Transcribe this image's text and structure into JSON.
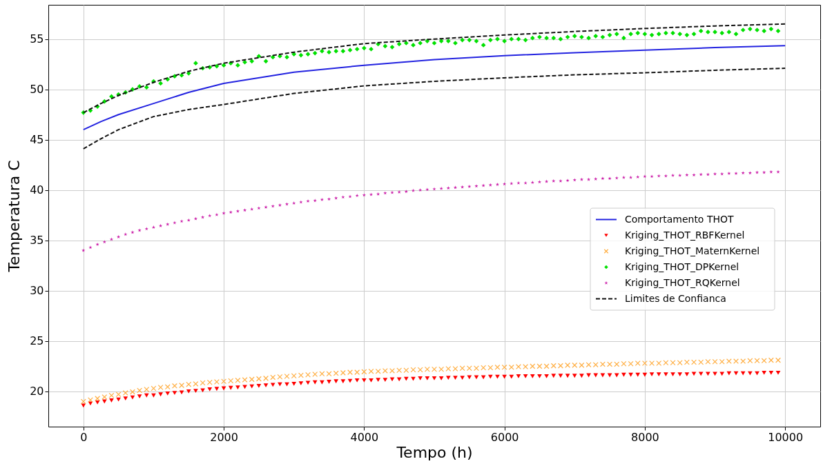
{
  "chart_data": {
    "type": "scatter",
    "xlabel": "Tempo (h)",
    "ylabel": "Temperatura C",
    "xlim": [
      -500,
      10500
    ],
    "ylim": [
      16.5,
      58.4
    ],
    "xticks": [
      0,
      2000,
      4000,
      6000,
      8000,
      10000
    ],
    "yticks": [
      20,
      25,
      30,
      35,
      40,
      45,
      50,
      55
    ],
    "grid": true,
    "legend": "right",
    "x": [
      0,
      100,
      200,
      300,
      400,
      500,
      600,
      700,
      800,
      900,
      1000,
      1100,
      1200,
      1300,
      1400,
      1500,
      1600,
      1700,
      1800,
      1900,
      2000,
      2100,
      2200,
      2300,
      2400,
      2500,
      2600,
      2700,
      2800,
      2900,
      3000,
      3100,
      3200,
      3300,
      3400,
      3500,
      3600,
      3700,
      3800,
      3900,
      4000,
      4100,
      4200,
      4300,
      4400,
      4500,
      4600,
      4700,
      4800,
      4900,
      5000,
      5100,
      5200,
      5300,
      5400,
      5500,
      5600,
      5700,
      5800,
      5900,
      6000,
      6100,
      6200,
      6300,
      6400,
      6500,
      6600,
      6700,
      6800,
      6900,
      7000,
      7100,
      7200,
      7300,
      7400,
      7500,
      7600,
      7700,
      7800,
      7900,
      8000,
      8100,
      8200,
      8300,
      8400,
      8500,
      8600,
      8700,
      8800,
      8900,
      9000,
      9100,
      9200,
      9300,
      9400,
      9500,
      9600,
      9700,
      9800,
      9900
    ],
    "series": [
      {
        "name": "Comportamento THOT",
        "type": "line",
        "color": "#2222e0",
        "line_style": "solid",
        "x": [
          0,
          250,
          500,
          1000,
          1500,
          2000,
          3000,
          4000,
          5000,
          6000,
          7000,
          8000,
          9000,
          10000
        ],
        "values": [
          46.0,
          46.8,
          47.5,
          48.6,
          49.7,
          50.6,
          51.7,
          52.4,
          52.95,
          53.35,
          53.65,
          53.9,
          54.15,
          54.35
        ]
      },
      {
        "name": "Kriging_THOT_RBFKernel",
        "marker": "triangle",
        "color": "#ff0000",
        "values": [
          18.6,
          18.8,
          18.9,
          19.0,
          19.1,
          19.2,
          19.3,
          19.4,
          19.5,
          19.6,
          19.6,
          19.7,
          19.8,
          19.85,
          19.9,
          20.0,
          20.05,
          20.1,
          20.2,
          20.25,
          20.3,
          20.35,
          20.4,
          20.45,
          20.5,
          20.55,
          20.6,
          20.65,
          20.7,
          20.7,
          20.75,
          20.8,
          20.85,
          20.9,
          20.9,
          20.95,
          21.0,
          21.0,
          21.05,
          21.1,
          21.1,
          21.1,
          21.15,
          21.15,
          21.2,
          21.2,
          21.25,
          21.25,
          21.3,
          21.3,
          21.3,
          21.3,
          21.35,
          21.35,
          21.35,
          21.4,
          21.4,
          21.4,
          21.45,
          21.45,
          21.45,
          21.45,
          21.5,
          21.5,
          21.5,
          21.5,
          21.5,
          21.55,
          21.55,
          21.55,
          21.55,
          21.55,
          21.6,
          21.6,
          21.6,
          21.6,
          21.6,
          21.65,
          21.65,
          21.65,
          21.65,
          21.7,
          21.7,
          21.7,
          21.7,
          21.7,
          21.7,
          21.75,
          21.75,
          21.75,
          21.75,
          21.75,
          21.8,
          21.8,
          21.8,
          21.8,
          21.8,
          21.85,
          21.85,
          21.85
        ]
      },
      {
        "name": "Kriging_THOT_MaternKernel",
        "marker": "cross",
        "color": "#ffae42",
        "values": [
          19.0,
          19.15,
          19.3,
          19.45,
          19.6,
          19.7,
          19.85,
          19.95,
          20.1,
          20.2,
          20.3,
          20.4,
          20.45,
          20.55,
          20.6,
          20.7,
          20.75,
          20.85,
          20.9,
          20.95,
          21.0,
          21.05,
          21.1,
          21.15,
          21.2,
          21.25,
          21.3,
          21.4,
          21.45,
          21.5,
          21.55,
          21.6,
          21.65,
          21.7,
          21.75,
          21.75,
          21.8,
          21.85,
          21.9,
          21.9,
          21.95,
          22.0,
          22.0,
          22.05,
          22.05,
          22.1,
          22.1,
          22.15,
          22.15,
          22.2,
          22.2,
          22.2,
          22.25,
          22.25,
          22.3,
          22.3,
          22.3,
          22.35,
          22.35,
          22.4,
          22.4,
          22.4,
          22.45,
          22.45,
          22.5,
          22.5,
          22.5,
          22.55,
          22.55,
          22.6,
          22.6,
          22.6,
          22.65,
          22.65,
          22.7,
          22.7,
          22.7,
          22.75,
          22.75,
          22.8,
          22.8,
          22.8,
          22.8,
          22.85,
          22.85,
          22.85,
          22.9,
          22.9,
          22.9,
          22.95,
          22.95,
          22.95,
          23.0,
          23.0,
          23.0,
          23.05,
          23.05,
          23.05,
          23.1,
          23.1
        ]
      },
      {
        "name": "Kriging_THOT_DPKernel",
        "marker": "diamond",
        "color": "#00e000",
        "values": [
          47.7,
          47.9,
          48.3,
          48.8,
          49.3,
          49.5,
          49.7,
          50.0,
          50.3,
          50.2,
          50.8,
          50.6,
          51.0,
          51.3,
          51.4,
          51.6,
          52.6,
          52.1,
          52.2,
          52.3,
          52.4,
          52.6,
          52.4,
          52.7,
          52.8,
          53.3,
          52.8,
          53.2,
          53.3,
          53.2,
          53.5,
          53.4,
          53.5,
          53.6,
          53.8,
          53.7,
          53.8,
          53.8,
          53.9,
          54.0,
          54.1,
          54.0,
          54.5,
          54.3,
          54.2,
          54.5,
          54.6,
          54.4,
          54.6,
          54.8,
          54.6,
          54.8,
          54.8,
          54.6,
          54.9,
          54.9,
          54.8,
          54.4,
          54.9,
          55.0,
          54.8,
          55.0,
          55.0,
          54.9,
          55.1,
          55.2,
          55.1,
          55.1,
          55.0,
          55.2,
          55.3,
          55.2,
          55.1,
          55.3,
          55.2,
          55.4,
          55.5,
          55.1,
          55.5,
          55.6,
          55.5,
          55.4,
          55.5,
          55.6,
          55.6,
          55.5,
          55.4,
          55.5,
          55.8,
          55.7,
          55.7,
          55.6,
          55.7,
          55.5,
          55.9,
          56.0,
          55.9,
          55.8,
          56.0,
          55.8
        ]
      },
      {
        "name": "Kriging_THOT_RQKernel",
        "marker": "star",
        "color": "#cc22aa",
        "values": [
          34.0,
          34.3,
          34.6,
          34.85,
          35.1,
          35.35,
          35.6,
          35.8,
          36.0,
          36.15,
          36.3,
          36.45,
          36.6,
          36.75,
          36.9,
          37.0,
          37.15,
          37.3,
          37.45,
          37.55,
          37.7,
          37.8,
          37.9,
          38.0,
          38.1,
          38.2,
          38.3,
          38.4,
          38.5,
          38.6,
          38.7,
          38.8,
          38.9,
          38.95,
          39.05,
          39.1,
          39.2,
          39.3,
          39.35,
          39.45,
          39.5,
          39.55,
          39.6,
          39.7,
          39.75,
          39.8,
          39.85,
          39.95,
          40.0,
          40.05,
          40.1,
          40.15,
          40.2,
          40.25,
          40.3,
          40.35,
          40.4,
          40.45,
          40.5,
          40.55,
          40.6,
          40.65,
          40.7,
          40.7,
          40.75,
          40.8,
          40.85,
          40.9,
          40.9,
          40.95,
          41.0,
          41.05,
          41.05,
          41.1,
          41.15,
          41.15,
          41.2,
          41.25,
          41.25,
          41.3,
          41.35,
          41.35,
          41.4,
          41.4,
          41.45,
          41.45,
          41.5,
          41.5,
          41.55,
          41.55,
          41.6,
          41.6,
          41.65,
          41.65,
          41.7,
          41.7,
          41.75,
          41.75,
          41.8,
          41.8
        ]
      },
      {
        "name": "Limites de Confianca",
        "type": "line",
        "color": "#111111",
        "line_style": "dashed",
        "x": [
          0,
          250,
          500,
          1000,
          1500,
          2000,
          3000,
          4000,
          5000,
          6000,
          7000,
          8000,
          9000,
          10000
        ],
        "values": [
          47.7,
          48.6,
          49.4,
          50.7,
          51.8,
          52.6,
          53.7,
          54.55,
          55.0,
          55.4,
          55.75,
          56.05,
          56.3,
          56.5
        ]
      },
      {
        "type": "line",
        "color": "#111111",
        "line_style": "dashed",
        "x": [
          0,
          250,
          500,
          1000,
          1500,
          2000,
          3000,
          4000,
          5000,
          6000,
          7000,
          8000,
          9000,
          10000
        ],
        "values": [
          44.1,
          45.1,
          46.0,
          47.3,
          48.0,
          48.5,
          49.6,
          50.35,
          50.8,
          51.15,
          51.45,
          51.65,
          51.9,
          52.1
        ]
      }
    ]
  }
}
